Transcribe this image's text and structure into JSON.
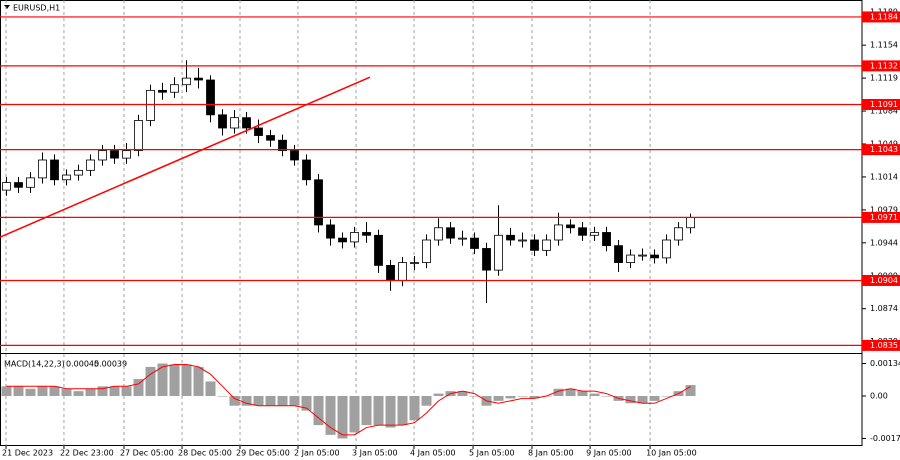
{
  "chart_data": [
    {
      "type": "candlestick",
      "title": "EURUSD,H1",
      "open": [
        1.1,
        1.1008,
        1.1003,
        1.1013,
        1.1032,
        1.1011,
        1.1016,
        1.1021,
        1.1032,
        1.1042,
        1.1034,
        1.1042,
        1.1074,
        1.1106,
        1.1104,
        1.1112,
        1.1119,
        1.1117,
        1.108,
        1.1066,
        1.1077,
        1.1066,
        1.1058,
        1.1053,
        1.1042,
        1.1032,
        1.1011,
        1.0963,
        1.0949,
        1.0945,
        1.0955,
        1.0952,
        1.092,
        1.0904,
        1.0923,
        1.0923,
        1.0947,
        1.096,
        1.0949,
        1.0949,
        1.0938,
        1.0915,
        1.0952,
        1.0947,
        1.0947,
        1.0936,
        1.0947,
        1.0963,
        1.096,
        1.0952,
        1.0955,
        1.0941,
        1.0923,
        1.0931,
        1.0931,
        1.0928,
        1.0947,
        1.096
      ],
      "high": [
        1.1014,
        1.1014,
        1.1019,
        1.104,
        1.1038,
        1.1022,
        1.1027,
        1.1038,
        1.1048,
        1.1048,
        1.105,
        1.108,
        1.1112,
        1.1114,
        1.112,
        1.1138,
        1.113,
        1.1122,
        1.1086,
        1.1085,
        1.1083,
        1.1075,
        1.1064,
        1.1059,
        1.1048,
        1.1038,
        1.1017,
        1.0969,
        1.0955,
        1.0961,
        1.0966,
        1.0958,
        1.0926,
        1.0929,
        1.093,
        1.0953,
        1.097,
        1.0966,
        1.0957,
        1.0955,
        1.0944,
        1.0984,
        1.096,
        1.0955,
        1.0953,
        1.0953,
        1.0976,
        1.0969,
        1.0966,
        1.0961,
        1.0961,
        1.0947,
        1.0937,
        1.0938,
        1.0937,
        1.0953,
        1.0966,
        1.0975
      ],
      "low": [
        1.0994,
        1.0997,
        1.0997,
        1.1007,
        1.1005,
        1.1005,
        1.101,
        1.1015,
        1.1026,
        1.1028,
        1.1028,
        1.1036,
        1.1068,
        1.1096,
        1.1098,
        1.1104,
        1.1108,
        1.1072,
        1.1058,
        1.106,
        1.106,
        1.105,
        1.1046,
        1.1036,
        1.1026,
        1.1005,
        1.0955,
        1.0941,
        1.0938,
        1.0939,
        1.0944,
        1.0912,
        1.0893,
        1.0898,
        1.0915,
        1.0917,
        1.0941,
        1.0943,
        1.0941,
        1.0932,
        1.088,
        1.0909,
        1.0941,
        1.0939,
        1.093,
        1.093,
        1.0941,
        1.0954,
        1.0946,
        1.0946,
        1.0935,
        1.0913,
        1.0917,
        1.0925,
        1.0922,
        1.0922,
        1.0941,
        1.0954
      ],
      "close": [
        1.1008,
        1.1003,
        1.1013,
        1.1032,
        1.1011,
        1.1016,
        1.1021,
        1.1032,
        1.1042,
        1.1034,
        1.1042,
        1.1074,
        1.1106,
        1.1104,
        1.1112,
        1.1119,
        1.1117,
        1.108,
        1.1066,
        1.1077,
        1.1066,
        1.1058,
        1.1053,
        1.1042,
        1.1032,
        1.1011,
        1.0963,
        1.0949,
        1.0945,
        1.0955,
        1.0952,
        1.092,
        1.0904,
        1.0923,
        1.0923,
        1.0947,
        1.096,
        1.0949,
        1.0949,
        1.0938,
        1.0915,
        1.0952,
        1.0947,
        1.0947,
        1.0936,
        1.0947,
        1.0963,
        1.096,
        1.0952,
        1.0955,
        1.0941,
        1.0923,
        1.0931,
        1.0931,
        1.0928,
        1.0947,
        1.096,
        1.0971
      ],
      "xlim": [
        -0.5,
        71.33
      ],
      "xticks": [
        {
          "value": 0,
          "label": "21 Dec 2023"
        },
        {
          "value": 4.83,
          "label": "22 Dec 23:00"
        },
        {
          "value": 9.83,
          "label": "27 Dec 05:00"
        },
        {
          "value": 14.67,
          "label": "28 Dec 05:00"
        },
        {
          "value": 19.5,
          "label": "29 Dec 05:00"
        },
        {
          "value": 24.33,
          "label": "2 Jan 05:00"
        },
        {
          "value": 29.17,
          "label": "3 Jan 05:00"
        },
        {
          "value": 34,
          "label": "4 Jan 05:00"
        },
        {
          "value": 38.92,
          "label": "5 Jan 05:00"
        },
        {
          "value": 43.83,
          "label": "8 Jan 05:00"
        },
        {
          "value": 48.67,
          "label": "9 Jan 05:00"
        },
        {
          "value": 53.67,
          "label": "10 Jan 05:00"
        }
      ],
      "ylim": [
        1.0828,
        1.1202
      ],
      "yticks": [
        1.1189,
        1.1154,
        1.1119,
        1.1084,
        1.1049,
        1.1014,
        1.0979,
        1.0944,
        1.0909,
        1.0874,
        1.0839
      ],
      "grid": true,
      "levels": {
        "values": [
          1.1184,
          1.1132,
          1.1091,
          1.1043,
          1.0971,
          1.0904,
          1.0835
        ],
        "color": "#ff0000"
      },
      "trendline": {
        "x": [
          -0.5,
          30.33
        ],
        "y": [
          1.095,
          1.112
        ],
        "color": "#ff0000"
      }
    },
    {
      "type": "macd",
      "name": "MACD(14,22,3)",
      "histogram": [
        0.0004,
        0.0004,
        0.0003,
        0.0004,
        0.0004,
        0.0003,
        0.0002,
        0.0003,
        0.0004,
        0.0004,
        0.0004,
        0.0007,
        0.0012,
        0.00134,
        0.0013,
        0.0013,
        0.0012,
        0.0006,
        0.0,
        -0.0004,
        -0.0004,
        -0.0004,
        -0.0004,
        -0.0004,
        -0.0004,
        -0.0006,
        -0.0012,
        -0.0016,
        -0.00175,
        -0.0015,
        -0.0012,
        -0.0012,
        -0.0013,
        -0.0012,
        -0.001,
        -0.0004,
        0.0001,
        0.0002,
        0.0002,
        0.0,
        -0.0004,
        -0.0002,
        -0.0001,
        0.0,
        -0.0001,
        0.0,
        0.0003,
        0.0003,
        0.0002,
        0.0001,
        0.0,
        -0.0002,
        -0.0003,
        -0.0003,
        -0.0002,
        0.0,
        0.0002,
        0.00045
      ],
      "signal": [
        0.0004,
        0.0004,
        0.0004,
        0.0004,
        0.0004,
        0.0003,
        0.0003,
        0.0003,
        0.0003,
        0.0004,
        0.0004,
        0.0005,
        0.0009,
        0.0012,
        0.0013,
        0.0013,
        0.0012,
        0.0009,
        0.0004,
        -0.0001,
        -0.0003,
        -0.0004,
        -0.0004,
        -0.0004,
        -0.0004,
        -0.0005,
        -0.0009,
        -0.0013,
        -0.0016,
        -0.0016,
        -0.0013,
        -0.0012,
        -0.0012,
        -0.0012,
        -0.0011,
        -0.0007,
        -0.0002,
        0.0001,
        0.0002,
        0.0001,
        -0.0002,
        -0.0003,
        -0.0002,
        -0.0001,
        -0.0001,
        0.0,
        0.0002,
        0.0003,
        0.0002,
        0.0002,
        0.0001,
        -0.0001,
        -0.0002,
        -0.0003,
        -0.0003,
        -0.0001,
        0.0001,
        0.00039
      ],
      "histogram_color": "#a0a0a0",
      "signal_color": "#ff0000",
      "ylim": [
        -0.00206,
        0.00169
      ],
      "yticks": [
        0.00134,
        {
          "value": 0,
          "label": "0.00"
        },
        -0.00175
      ]
    }
  ]
}
